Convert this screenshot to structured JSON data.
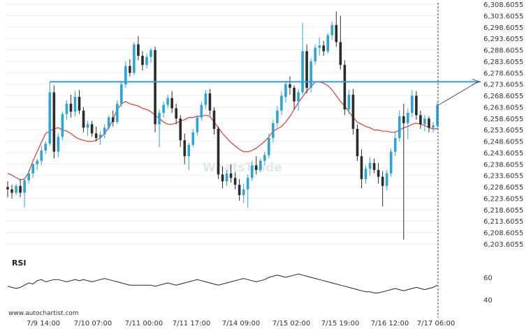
{
  "source_label": "www.autochartist.com",
  "watermark_text": "WhatsTrade",
  "rsi_label": "RSI",
  "colors": {
    "bull": "#2aa4dd",
    "bear": "#2b2b2b",
    "ma": "#e8382d",
    "resistance": "#2a9ee0",
    "projection": "#555555",
    "rsi": "#222222",
    "grid": "#eeeeee"
  },
  "chart_data": {
    "type": "candlestick",
    "y_ticks": [
      "6,308.6055",
      "6,303.6055",
      "6,298.6055",
      "6,293.6055",
      "6,288.6055",
      "6,283.6055",
      "6,278.6055",
      "6,273.6055",
      "6,268.6055",
      "6,263.6055",
      "6,258.6055",
      "6,253.6055",
      "6,248.6055",
      "6,243.6055",
      "6,238.6055",
      "6,233.6055",
      "6,228.6055",
      "6,223.6055",
      "6,218.6055",
      "6,213.6055",
      "6,208.6055",
      "6,203.6055"
    ],
    "ylim": [
      6203.6055,
      6308.6055
    ],
    "x_ticks": [
      "7/9 14:00",
      "7/10 07:00",
      "7/11 00:00",
      "7/11 17:00",
      "7/14 09:00",
      "7/15 02:00",
      "7/15 19:00",
      "7/16 12:00",
      "7/17 06:00"
    ],
    "resistance_level": 6274.6,
    "projection_target": 6274.6,
    "ma_values": [
      6234.6,
      6233.7,
      6232.6,
      6231.7,
      6232.0,
      6235.0,
      6240.0,
      6244.0,
      6248.0,
      6252.0,
      6253.0,
      6254.0,
      6254.5,
      6253.5,
      6253.0,
      6252.0,
      6250.5,
      6249.5,
      6249.0,
      6248.5,
      6248.5,
      6249.0,
      6250.0,
      6252.0,
      6254.5,
      6258.0,
      6262.5,
      6265.0,
      6266.0,
      6265.0,
      6264.5,
      6264.0,
      6263.0,
      6262.5,
      6261.5,
      6260.0,
      6258.5,
      6257.0,
      6256.0,
      6256.0,
      6256.5,
      6257.5,
      6258.0,
      6259.0,
      6259.0,
      6259.5,
      6259.5,
      6260.0,
      6259.5,
      6257.0,
      6254.5,
      6252.0,
      6250.0,
      6248.0,
      6246.5,
      6245.0,
      6244.0,
      6244.0,
      6244.5,
      6245.5,
      6247.0,
      6248.5,
      6250.5,
      6253.0,
      6254.0,
      6255.0,
      6257.0,
      6259.5,
      6262.5,
      6265.5,
      6268.0,
      6270.5,
      6272.5,
      6274.5,
      6274.5,
      6274.0,
      6273.0,
      6271.0,
      6268.5,
      6266.0,
      6264.0,
      6261.5,
      6259.0,
      6257.0,
      6256.0,
      6255.0,
      6254.5,
      6253.5,
      6253.5,
      6253.0,
      6253.0,
      6252.5,
      6252.5,
      6253.5,
      6254.5,
      6255.0,
      6256.0,
      6256.5,
      6256.0,
      6255.5,
      6254.5,
      6254.0,
      6254.0
    ],
    "rsi_values": [
      52,
      51,
      50,
      51,
      53,
      55,
      54,
      57,
      58,
      56,
      57,
      58,
      58,
      57,
      56,
      57,
      58,
      57,
      58,
      57,
      56,
      57,
      58,
      59,
      58,
      57,
      56,
      55,
      54,
      53,
      53,
      53,
      53,
      53,
      53,
      52,
      53,
      54,
      55,
      54,
      53,
      54,
      55,
      56,
      57,
      58,
      57,
      56,
      55,
      54,
      53,
      54,
      55,
      56,
      57,
      58,
      59,
      58,
      57,
      56,
      57,
      58,
      60,
      61,
      62,
      61,
      60,
      61,
      62,
      63,
      62,
      61,
      60,
      59,
      58,
      57,
      56,
      55,
      54,
      53,
      52,
      51,
      50,
      49,
      48,
      47,
      47,
      46,
      46,
      47,
      48,
      49,
      50,
      49,
      48,
      49,
      50,
      51,
      50,
      49,
      50,
      51,
      53
    ],
    "rsi_ticks": [
      60,
      40
    ],
    "rsi_ylim": [
      30,
      68
    ],
    "candles": [
      {
        "o": 6228.5,
        "h": 6231.0,
        "l": 6224.0,
        "c": 6227.5
      },
      {
        "o": 6227.5,
        "h": 6229.5,
        "l": 6223.5,
        "c": 6226.0
      },
      {
        "o": 6226.0,
        "h": 6230.0,
        "l": 6225.0,
        "c": 6229.0
      },
      {
        "o": 6229.0,
        "h": 6232.0,
        "l": 6224.0,
        "c": 6226.0
      },
      {
        "o": 6226.0,
        "h": 6232.5,
        "l": 6219.5,
        "c": 6231.5
      },
      {
        "o": 6231.5,
        "h": 6236.0,
        "l": 6230.0,
        "c": 6234.5
      },
      {
        "o": 6234.5,
        "h": 6239.0,
        "l": 6232.5,
        "c": 6238.5
      },
      {
        "o": 6238.5,
        "h": 6241.0,
        "l": 6236.0,
        "c": 6240.0
      },
      {
        "o": 6240.0,
        "h": 6246.5,
        "l": 6238.0,
        "c": 6244.5
      },
      {
        "o": 6244.5,
        "h": 6248.5,
        "l": 6243.0,
        "c": 6247.5
      },
      {
        "o": 6247.5,
        "h": 6274.6,
        "l": 6246.5,
        "c": 6270.0
      },
      {
        "o": 6270.0,
        "h": 6273.0,
        "l": 6241.0,
        "c": 6244.0
      },
      {
        "o": 6244.0,
        "h": 6252.0,
        "l": 6241.5,
        "c": 6250.5
      },
      {
        "o": 6250.5,
        "h": 6261.5,
        "l": 6249.0,
        "c": 6260.5
      },
      {
        "o": 6260.5,
        "h": 6266.5,
        "l": 6258.0,
        "c": 6265.0
      },
      {
        "o": 6265.0,
        "h": 6269.0,
        "l": 6259.0,
        "c": 6261.5
      },
      {
        "o": 6261.5,
        "h": 6270.5,
        "l": 6259.5,
        "c": 6268.0
      },
      {
        "o": 6268.0,
        "h": 6271.0,
        "l": 6260.5,
        "c": 6262.0
      },
      {
        "o": 6262.0,
        "h": 6263.5,
        "l": 6252.5,
        "c": 6254.5
      },
      {
        "o": 6254.5,
        "h": 6257.5,
        "l": 6251.0,
        "c": 6256.0
      },
      {
        "o": 6256.0,
        "h": 6257.5,
        "l": 6250.5,
        "c": 6252.0
      },
      {
        "o": 6252.0,
        "h": 6255.0,
        "l": 6248.5,
        "c": 6250.0
      },
      {
        "o": 6250.0,
        "h": 6253.0,
        "l": 6247.0,
        "c": 6251.5
      },
      {
        "o": 6251.5,
        "h": 6256.0,
        "l": 6250.0,
        "c": 6254.5
      },
      {
        "o": 6254.5,
        "h": 6260.0,
        "l": 6253.5,
        "c": 6259.0
      },
      {
        "o": 6259.0,
        "h": 6262.0,
        "l": 6255.0,
        "c": 6257.0
      },
      {
        "o": 6257.0,
        "h": 6266.5,
        "l": 6256.0,
        "c": 6265.0
      },
      {
        "o": 6265.0,
        "h": 6275.0,
        "l": 6263.5,
        "c": 6273.5
      },
      {
        "o": 6273.5,
        "h": 6283.5,
        "l": 6272.0,
        "c": 6281.5
      },
      {
        "o": 6281.5,
        "h": 6284.5,
        "l": 6277.0,
        "c": 6278.5
      },
      {
        "o": 6278.5,
        "h": 6292.0,
        "l": 6277.5,
        "c": 6291.0
      },
      {
        "o": 6291.0,
        "h": 6294.5,
        "l": 6284.0,
        "c": 6286.0
      },
      {
        "o": 6286.0,
        "h": 6288.0,
        "l": 6279.5,
        "c": 6282.0
      },
      {
        "o": 6282.0,
        "h": 6287.0,
        "l": 6280.5,
        "c": 6285.5
      },
      {
        "o": 6285.5,
        "h": 6289.5,
        "l": 6283.0,
        "c": 6288.5
      },
      {
        "o": 6288.5,
        "h": 6290.0,
        "l": 6252.5,
        "c": 6256.0
      },
      {
        "o": 6256.0,
        "h": 6262.5,
        "l": 6246.0,
        "c": 6261.0
      },
      {
        "o": 6261.0,
        "h": 6266.0,
        "l": 6259.0,
        "c": 6264.5
      },
      {
        "o": 6264.5,
        "h": 6269.0,
        "l": 6263.0,
        "c": 6267.5
      },
      {
        "o": 6267.5,
        "h": 6270.5,
        "l": 6261.0,
        "c": 6263.0
      },
      {
        "o": 6263.0,
        "h": 6265.0,
        "l": 6256.0,
        "c": 6258.5
      },
      {
        "o": 6258.5,
        "h": 6260.0,
        "l": 6246.0,
        "c": 6249.0
      },
      {
        "o": 6249.0,
        "h": 6252.0,
        "l": 6238.5,
        "c": 6242.0
      },
      {
        "o": 6242.0,
        "h": 6248.0,
        "l": 6236.0,
        "c": 6247.0
      },
      {
        "o": 6247.0,
        "h": 6254.0,
        "l": 6246.0,
        "c": 6252.5
      },
      {
        "o": 6252.5,
        "h": 6260.0,
        "l": 6251.0,
        "c": 6259.0
      },
      {
        "o": 6259.0,
        "h": 6266.0,
        "l": 6257.5,
        "c": 6264.5
      },
      {
        "o": 6264.5,
        "h": 6271.0,
        "l": 6262.5,
        "c": 6269.5
      },
      {
        "o": 6269.5,
        "h": 6271.5,
        "l": 6260.0,
        "c": 6262.0
      },
      {
        "o": 6262.0,
        "h": 6263.5,
        "l": 6251.5,
        "c": 6254.0
      },
      {
        "o": 6254.0,
        "h": 6255.0,
        "l": 6232.0,
        "c": 6234.0
      },
      {
        "o": 6234.0,
        "h": 6237.5,
        "l": 6228.0,
        "c": 6231.0
      },
      {
        "o": 6231.0,
        "h": 6236.0,
        "l": 6229.0,
        "c": 6234.5
      },
      {
        "o": 6234.5,
        "h": 6238.5,
        "l": 6230.5,
        "c": 6232.5
      },
      {
        "o": 6232.5,
        "h": 6235.0,
        "l": 6227.5,
        "c": 6229.5
      },
      {
        "o": 6229.5,
        "h": 6232.0,
        "l": 6222.5,
        "c": 6225.0
      },
      {
        "o": 6225.0,
        "h": 6230.0,
        "l": 6221.5,
        "c": 6227.5
      },
      {
        "o": 6227.5,
        "h": 6234.0,
        "l": 6219.5,
        "c": 6232.5
      },
      {
        "o": 6232.5,
        "h": 6240.0,
        "l": 6231.0,
        "c": 6238.0
      },
      {
        "o": 6238.0,
        "h": 6242.0,
        "l": 6234.0,
        "c": 6236.0
      },
      {
        "o": 6236.0,
        "h": 6241.0,
        "l": 6235.0,
        "c": 6240.0
      },
      {
        "o": 6240.0,
        "h": 6244.0,
        "l": 6238.0,
        "c": 6242.5
      },
      {
        "o": 6242.5,
        "h": 6252.0,
        "l": 6241.0,
        "c": 6250.0
      },
      {
        "o": 6250.0,
        "h": 6258.0,
        "l": 6248.0,
        "c": 6256.5
      },
      {
        "o": 6256.5,
        "h": 6264.0,
        "l": 6254.5,
        "c": 6262.0
      },
      {
        "o": 6262.0,
        "h": 6270.5,
        "l": 6260.0,
        "c": 6268.5
      },
      {
        "o": 6268.0,
        "h": 6275.0,
        "l": 6265.5,
        "c": 6273.5
      },
      {
        "o": 6273.5,
        "h": 6277.0,
        "l": 6269.0,
        "c": 6272.0
      },
      {
        "o": 6272.0,
        "h": 6273.0,
        "l": 6262.5,
        "c": 6266.0
      },
      {
        "o": 6266.0,
        "h": 6271.5,
        "l": 6262.0,
        "c": 6270.0
      },
      {
        "o": 6270.0,
        "h": 6300.5,
        "l": 6269.0,
        "c": 6288.0
      },
      {
        "o": 6288.0,
        "h": 6291.0,
        "l": 6269.5,
        "c": 6272.0
      },
      {
        "o": 6272.0,
        "h": 6285.0,
        "l": 6270.0,
        "c": 6283.5
      },
      {
        "o": 6283.5,
        "h": 6291.0,
        "l": 6282.0,
        "c": 6289.5
      },
      {
        "o": 6289.5,
        "h": 6294.0,
        "l": 6286.0,
        "c": 6290.5
      },
      {
        "o": 6290.5,
        "h": 6292.5,
        "l": 6286.0,
        "c": 6288.0
      },
      {
        "o": 6288.0,
        "h": 6296.0,
        "l": 6287.0,
        "c": 6295.0
      },
      {
        "o": 6295.0,
        "h": 6301.0,
        "l": 6293.0,
        "c": 6299.5
      },
      {
        "o": 6299.5,
        "h": 6305.5,
        "l": 6290.0,
        "c": 6292.0
      },
      {
        "o": 6292.0,
        "h": 6303.5,
        "l": 6280.0,
        "c": 6282.0
      },
      {
        "o": 6282.0,
        "h": 6284.0,
        "l": 6260.0,
        "c": 6262.5
      },
      {
        "o": 6262.5,
        "h": 6271.0,
        "l": 6260.5,
        "c": 6269.0
      },
      {
        "o": 6269.0,
        "h": 6271.5,
        "l": 6251.5,
        "c": 6254.0
      },
      {
        "o": 6254.0,
        "h": 6256.0,
        "l": 6240.0,
        "c": 6242.0
      },
      {
        "o": 6242.0,
        "h": 6245.0,
        "l": 6228.0,
        "c": 6232.0
      },
      {
        "o": 6232.0,
        "h": 6238.0,
        "l": 6230.0,
        "c": 6236.5
      },
      {
        "o": 6236.5,
        "h": 6241.5,
        "l": 6233.5,
        "c": 6239.0
      },
      {
        "o": 6239.0,
        "h": 6241.0,
        "l": 6234.5,
        "c": 6236.0
      },
      {
        "o": 6236.0,
        "h": 6239.0,
        "l": 6230.0,
        "c": 6233.0
      },
      {
        "o": 6233.0,
        "h": 6235.5,
        "l": 6220.0,
        "c": 6229.0
      },
      {
        "o": 6229.0,
        "h": 6236.0,
        "l": 6227.0,
        "c": 6234.5
      },
      {
        "o": 6234.5,
        "h": 6245.5,
        "l": 6233.0,
        "c": 6244.0
      },
      {
        "o": 6244.0,
        "h": 6252.5,
        "l": 6242.0,
        "c": 6250.0
      },
      {
        "o": 6250.0,
        "h": 6262.0,
        "l": 6248.5,
        "c": 6259.5
      },
      {
        "o": 6259.5,
        "h": 6265.0,
        "l": 6205.5,
        "c": 6256.5
      },
      {
        "o": 6256.5,
        "h": 6263.0,
        "l": 6249.5,
        "c": 6261.0
      },
      {
        "o": 6261.0,
        "h": 6271.0,
        "l": 6259.0,
        "c": 6268.5
      },
      {
        "o": 6268.5,
        "h": 6270.5,
        "l": 6258.0,
        "c": 6260.0
      },
      {
        "o": 6260.0,
        "h": 6262.0,
        "l": 6254.0,
        "c": 6256.0
      },
      {
        "o": 6256.0,
        "h": 6260.0,
        "l": 6253.0,
        "c": 6258.5
      },
      {
        "o": 6258.5,
        "h": 6259.5,
        "l": 6252.5,
        "c": 6254.5
      },
      {
        "o": 6254.5,
        "h": 6257.0,
        "l": 6252.5,
        "c": 6255.5
      },
      {
        "o": 6255.5,
        "h": 6265.5,
        "l": 6254.0,
        "c": 6264.5
      }
    ]
  }
}
